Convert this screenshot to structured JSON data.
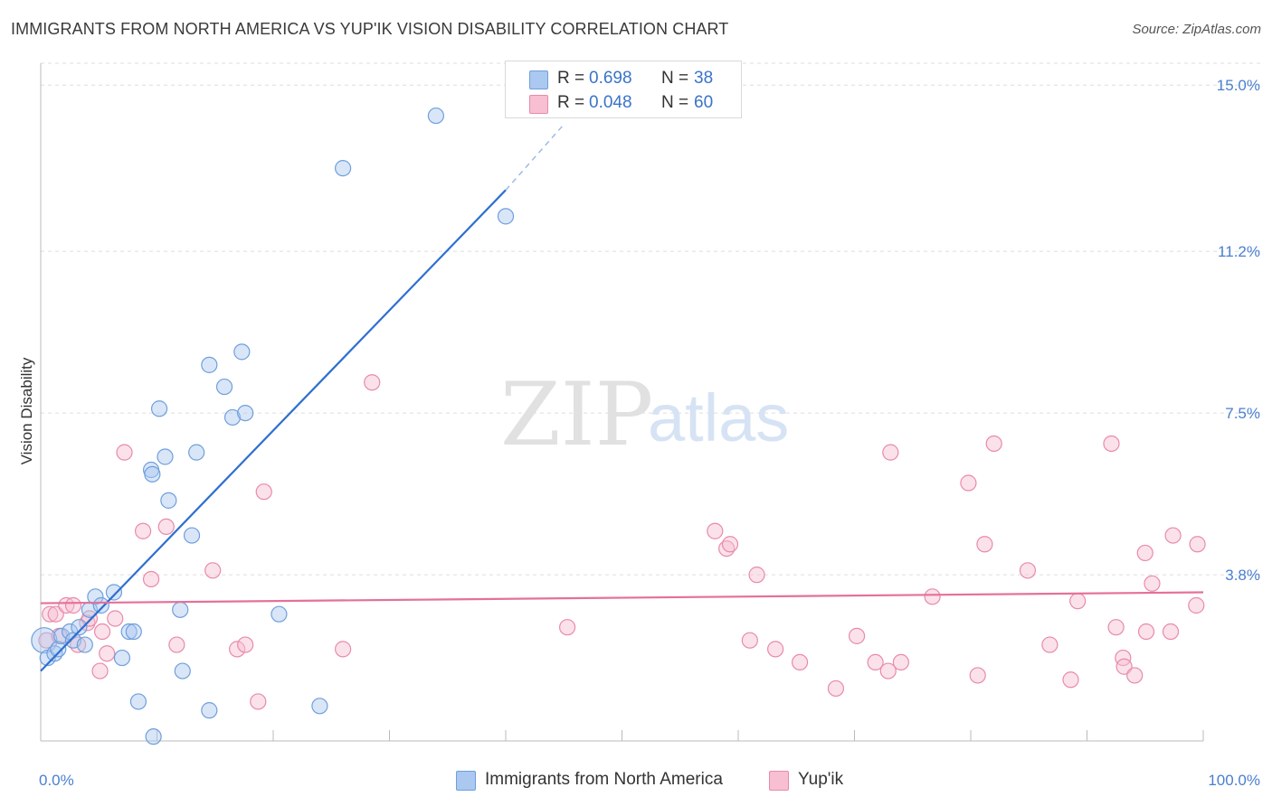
{
  "title": "IMMIGRANTS FROM NORTH AMERICA VS YUP'IK VISION DISABILITY CORRELATION CHART",
  "source": "Source: ZipAtlas.com",
  "watermark": {
    "zip": "ZIP",
    "atlas": "atlas"
  },
  "colors": {
    "blue_fill": "#aac8f0",
    "blue_stroke": "#6f9fdc",
    "blue_line": "#2e6fd0",
    "pink_fill": "#f7bfd1",
    "pink_stroke": "#e98aa9",
    "pink_line": "#e5709a",
    "tick_text": "#4a7fd0",
    "grid": "#dddddd"
  },
  "legend": {
    "rows": [
      {
        "r_label": "R =",
        "r_value": "0.698",
        "n_label": "N =",
        "n_value": "38"
      },
      {
        "r_label": "R =",
        "r_value": "0.048",
        "n_label": "N =",
        "n_value": "60"
      }
    ]
  },
  "chart_data": {
    "type": "scatter",
    "title": "IMMIGRANTS FROM NORTH AMERICA VS YUP'IK VISION DISABILITY CORRELATION CHART",
    "xlabel": "",
    "ylabel": "Vision Disability",
    "xlim": [
      0,
      100
    ],
    "ylim": [
      0,
      15.5
    ],
    "x_ticks": [
      "0.0%",
      "100.0%"
    ],
    "y_ticks": [
      {
        "value": 3.8,
        "label": "3.8%"
      },
      {
        "value": 7.5,
        "label": "7.5%"
      },
      {
        "value": 11.2,
        "label": "11.2%"
      },
      {
        "value": 15.0,
        "label": "15.0%"
      }
    ],
    "grid": "horizontal dashed",
    "legend_position": "top-center and bottom",
    "series": [
      {
        "name": "Immigrants from North America",
        "color": "#aac8f0",
        "r": 0.698,
        "n": 38,
        "trend": {
          "x0": 0,
          "y0": 1.6,
          "x1": 40,
          "y1": 12.6,
          "dashed_to_x": 45,
          "dashed_to_y": 14.1
        },
        "points": [
          [
            0.3,
            2.3
          ],
          [
            0.6,
            1.9
          ],
          [
            1.2,
            2.0
          ],
          [
            1.5,
            2.1
          ],
          [
            1.8,
            2.4
          ],
          [
            2.5,
            2.5
          ],
          [
            2.8,
            2.3
          ],
          [
            3.3,
            2.6
          ],
          [
            3.8,
            2.2
          ],
          [
            4.2,
            3.0
          ],
          [
            4.7,
            3.3
          ],
          [
            5.2,
            3.1
          ],
          [
            6.3,
            3.4
          ],
          [
            7.0,
            1.9
          ],
          [
            7.6,
            2.5
          ],
          [
            8.0,
            2.5
          ],
          [
            8.4,
            0.9
          ],
          [
            9.5,
            6.2
          ],
          [
            9.6,
            6.1
          ],
          [
            9.7,
            0.1
          ],
          [
            10.2,
            7.6
          ],
          [
            10.7,
            6.5
          ],
          [
            11.0,
            5.5
          ],
          [
            12.0,
            3.0
          ],
          [
            12.2,
            1.6
          ],
          [
            13.0,
            4.7
          ],
          [
            13.4,
            6.6
          ],
          [
            14.5,
            8.6
          ],
          [
            14.5,
            0.7
          ],
          [
            15.8,
            8.1
          ],
          [
            16.5,
            7.4
          ],
          [
            17.3,
            8.9
          ],
          [
            17.6,
            7.5
          ],
          [
            20.5,
            2.9
          ],
          [
            24.0,
            0.8
          ],
          [
            26.0,
            13.1
          ],
          [
            34.0,
            14.3
          ],
          [
            40.0,
            12.0
          ]
        ]
      },
      {
        "name": "Yup'ik",
        "color": "#f7bfd1",
        "r": 0.048,
        "n": 60,
        "trend": {
          "x0": 0,
          "y0": 3.15,
          "x1": 100,
          "y1": 3.4
        },
        "points": [
          [
            0.5,
            2.3
          ],
          [
            0.8,
            2.9
          ],
          [
            1.3,
            2.9
          ],
          [
            1.6,
            2.4
          ],
          [
            2.2,
            3.1
          ],
          [
            2.8,
            3.1
          ],
          [
            3.2,
            2.2
          ],
          [
            4.0,
            2.7
          ],
          [
            4.2,
            2.8
          ],
          [
            5.1,
            1.6
          ],
          [
            5.3,
            2.5
          ],
          [
            5.7,
            2.0
          ],
          [
            6.4,
            2.8
          ],
          [
            7.2,
            6.6
          ],
          [
            8.8,
            4.8
          ],
          [
            9.5,
            3.7
          ],
          [
            10.8,
            4.9
          ],
          [
            11.7,
            2.2
          ],
          [
            14.8,
            3.9
          ],
          [
            16.9,
            2.1
          ],
          [
            17.6,
            2.2
          ],
          [
            18.7,
            0.9
          ],
          [
            19.2,
            5.7
          ],
          [
            26.0,
            2.1
          ],
          [
            28.5,
            8.2
          ],
          [
            45.3,
            2.6
          ],
          [
            58.0,
            4.8
          ],
          [
            59.0,
            4.4
          ],
          [
            59.3,
            4.5
          ],
          [
            61.0,
            2.3
          ],
          [
            61.6,
            3.8
          ],
          [
            63.2,
            2.1
          ],
          [
            65.3,
            1.8
          ],
          [
            68.4,
            1.2
          ],
          [
            70.2,
            2.4
          ],
          [
            71.8,
            1.8
          ],
          [
            72.9,
            1.6
          ],
          [
            73.1,
            6.6
          ],
          [
            74.0,
            1.8
          ],
          [
            76.7,
            3.3
          ],
          [
            79.8,
            5.9
          ],
          [
            80.6,
            1.5
          ],
          [
            81.2,
            4.5
          ],
          [
            82.0,
            6.8
          ],
          [
            84.9,
            3.9
          ],
          [
            86.8,
            2.2
          ],
          [
            88.6,
            1.4
          ],
          [
            89.2,
            3.2
          ],
          [
            92.1,
            6.8
          ],
          [
            92.5,
            2.6
          ],
          [
            93.1,
            1.9
          ],
          [
            93.2,
            1.7
          ],
          [
            94.1,
            1.5
          ],
          [
            95.0,
            4.3
          ],
          [
            95.1,
            2.5
          ],
          [
            95.6,
            3.6
          ],
          [
            97.2,
            2.5
          ],
          [
            97.4,
            4.7
          ],
          [
            99.4,
            3.1
          ],
          [
            99.5,
            4.5
          ]
        ]
      }
    ]
  },
  "bottom_legend": {
    "items": [
      {
        "label": "Immigrants from North America"
      },
      {
        "label": "Yup'ik"
      }
    ]
  }
}
